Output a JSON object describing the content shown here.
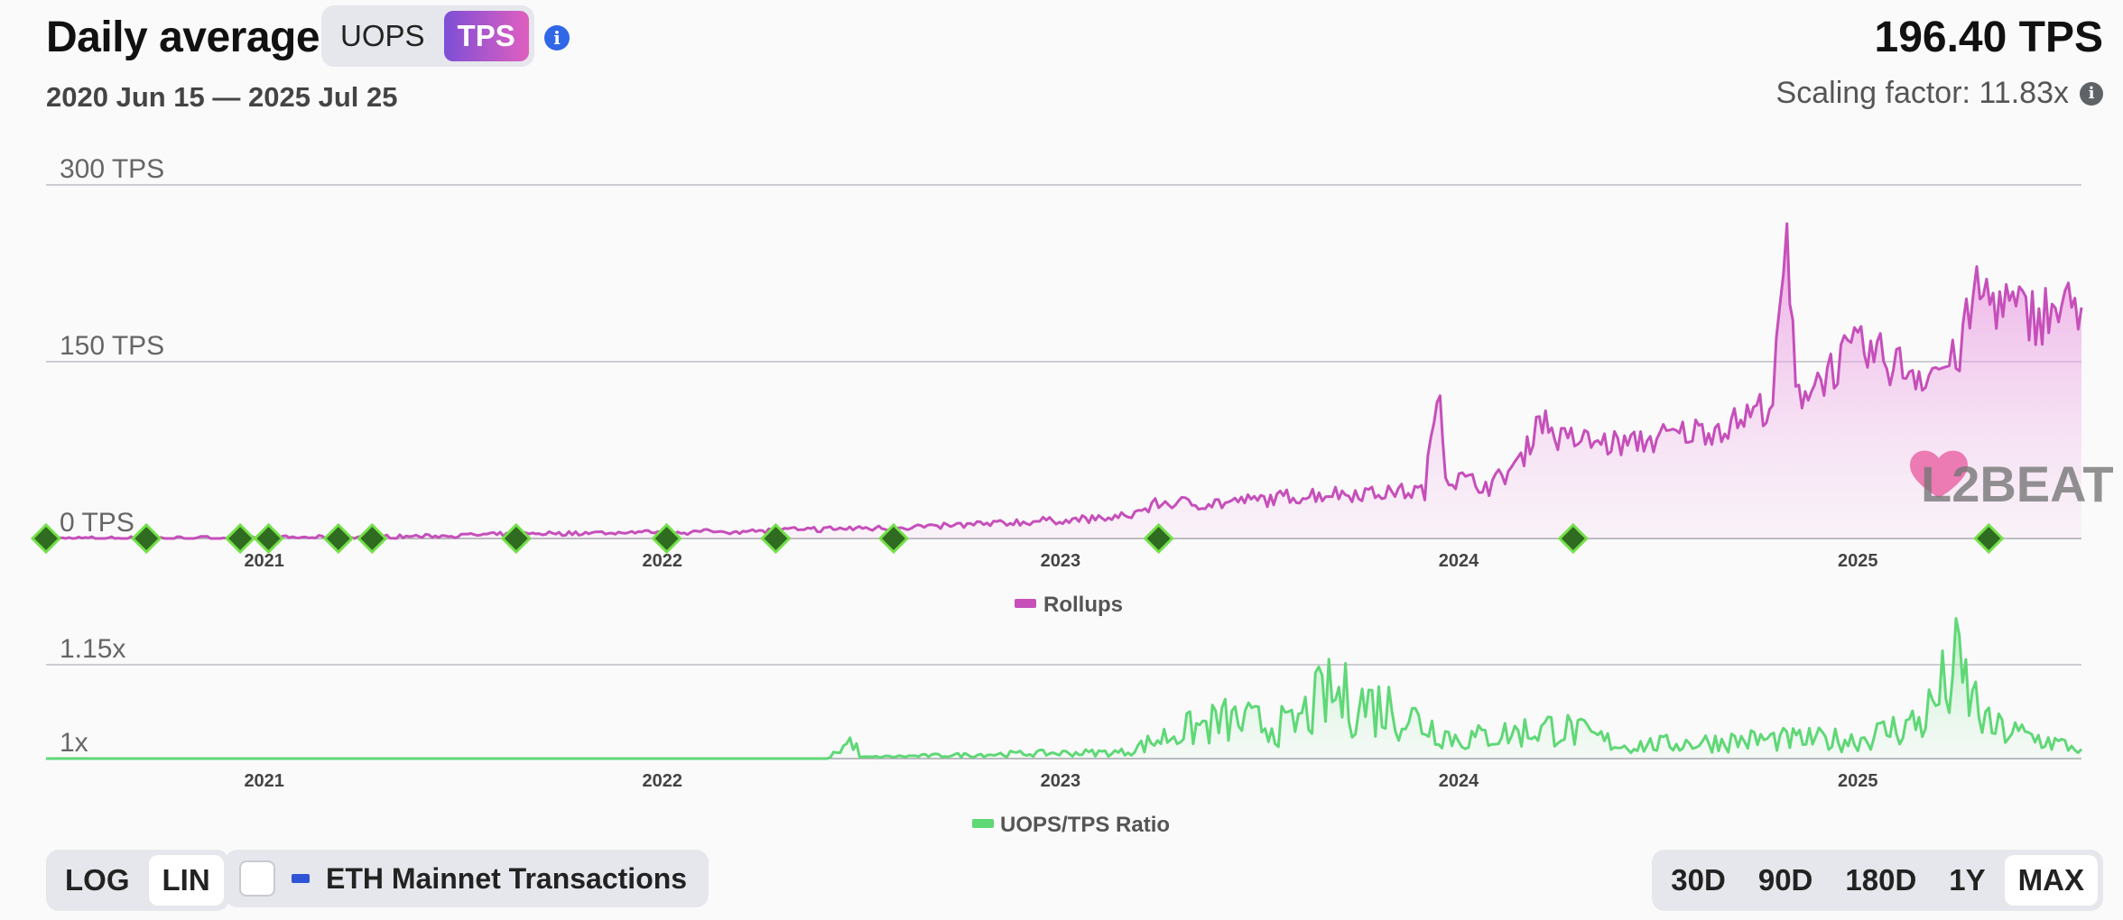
{
  "header": {
    "title": "Daily average",
    "metric_toggle": [
      {
        "label": "UOPS",
        "active": false
      },
      {
        "label": "TPS",
        "active": true
      }
    ],
    "info_icon": "info-icon",
    "date_range": "2020 Jun 15 — 2025 Jul 25",
    "stat_value": "196.40 TPS",
    "scaling_factor": "Scaling factor: 11.83x"
  },
  "colors": {
    "rollups": "#c64fba",
    "ratio": "#5fd876",
    "marker": "#2f6b20",
    "marker_border": "#74e04a",
    "accent": "#2f67e6"
  },
  "watermark": "L2BEAT",
  "chart_data": [
    {
      "type": "area",
      "title": "",
      "y_ticks": [
        "300 TPS",
        "150 TPS",
        "0 TPS"
      ],
      "ylim": [
        0,
        300
      ],
      "x_ticks": [
        "2021",
        "2022",
        "2023",
        "2024",
        "2025"
      ],
      "xlim": [
        "2020-06-15",
        "2025-07-25"
      ],
      "grid": true,
      "legend": "bottom-center",
      "series": [
        {
          "name": "Rollups",
          "points": [
            [
              "2020-06-15",
              0.2
            ],
            [
              "2020-09-01",
              0.3
            ],
            [
              "2020-12-01",
              0.5
            ],
            [
              "2021-03-01",
              1
            ],
            [
              "2021-06-01",
              2
            ],
            [
              "2021-09-01",
              4
            ],
            [
              "2021-12-01",
              5
            ],
            [
              "2022-03-01",
              6
            ],
            [
              "2022-06-01",
              8
            ],
            [
              "2022-09-01",
              10
            ],
            [
              "2022-12-01",
              14
            ],
            [
              "2023-03-01",
              18
            ],
            [
              "2023-04-01",
              30
            ],
            [
              "2023-06-01",
              30
            ],
            [
              "2023-09-01",
              38
            ],
            [
              "2023-12-01",
              40
            ],
            [
              "2023-12-15",
              140
            ],
            [
              "2023-12-20",
              52
            ],
            [
              "2024-02-01",
              45
            ],
            [
              "2024-03-01",
              70
            ],
            [
              "2024-03-15",
              105
            ],
            [
              "2024-04-01",
              85
            ],
            [
              "2024-06-01",
              80
            ],
            [
              "2024-09-01",
              95
            ],
            [
              "2024-10-15",
              115
            ],
            [
              "2024-10-28",
              253
            ],
            [
              "2024-11-05",
              120
            ],
            [
              "2024-12-01",
              140
            ],
            [
              "2025-01-01",
              160
            ],
            [
              "2025-03-01",
              140
            ],
            [
              "2025-04-01",
              150
            ],
            [
              "2025-04-20",
              210
            ],
            [
              "2025-06-01",
              190
            ],
            [
              "2025-07-25",
              196
            ]
          ]
        }
      ],
      "markers": [
        "2020-06-15",
        "2020-09-15",
        "2020-12-10",
        "2021-01-05",
        "2021-03-10",
        "2021-04-10",
        "2021-08-20",
        "2022-01-05",
        "2022-04-15",
        "2022-08-01",
        "2023-04-01",
        "2024-04-15",
        "2025-05-01"
      ]
    },
    {
      "type": "area",
      "title": "",
      "y_ticks": [
        "1.15x",
        "1x"
      ],
      "ylim": [
        1,
        1.15
      ],
      "x_ticks": [
        "2021",
        "2022",
        "2023",
        "2024",
        "2025"
      ],
      "xlim": [
        "2020-06-15",
        "2025-07-25"
      ],
      "grid": true,
      "legend": "bottom-center",
      "series": [
        {
          "name": "UOPS/TPS Ratio",
          "points": [
            [
              "2020-06-15",
              1.0
            ],
            [
              "2022-06-01",
              1.0
            ],
            [
              "2022-06-25",
              1.03
            ],
            [
              "2022-07-01",
              1.002
            ],
            [
              "2022-12-01",
              1.008
            ],
            [
              "2023-03-01",
              1.01
            ],
            [
              "2023-04-15",
              1.04
            ],
            [
              "2023-06-01",
              1.06
            ],
            [
              "2023-08-01",
              1.05
            ],
            [
              "2023-09-01",
              1.1
            ],
            [
              "2023-11-01",
              1.08
            ],
            [
              "2024-01-01",
              1.03
            ],
            [
              "2024-04-01",
              1.05
            ],
            [
              "2024-06-01",
              1.02
            ],
            [
              "2024-10-01",
              1.03
            ],
            [
              "2025-01-01",
              1.03
            ],
            [
              "2025-03-01",
              1.06
            ],
            [
              "2025-04-01",
              1.14
            ],
            [
              "2025-05-01",
              1.05
            ],
            [
              "2025-07-25",
              1.015
            ]
          ]
        }
      ]
    }
  ],
  "footer": {
    "scale_toggle": [
      {
        "label": "LOG",
        "active": false
      },
      {
        "label": "LIN",
        "active": true
      }
    ],
    "mainnet_checkbox": {
      "label": "ETH Mainnet Transactions",
      "checked": false
    },
    "range_buttons": [
      {
        "label": "30D",
        "active": false
      },
      {
        "label": "90D",
        "active": false
      },
      {
        "label": "180D",
        "active": false
      },
      {
        "label": "1Y",
        "active": false
      },
      {
        "label": "MAX",
        "active": true
      }
    ]
  }
}
